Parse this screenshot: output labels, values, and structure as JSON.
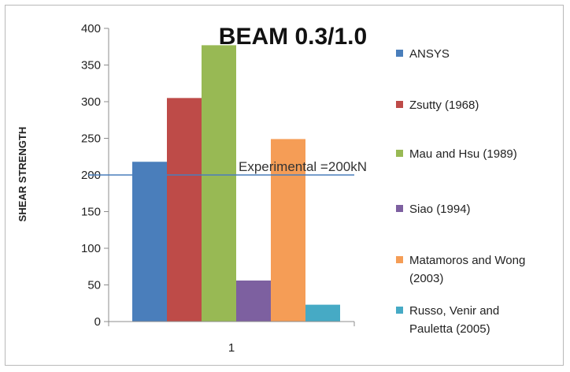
{
  "chart_data": {
    "type": "bar",
    "title": "BEAM 0.3/1.0",
    "xlabel": "",
    "ylabel": "SHEAR STRENGTH",
    "categories": [
      "1"
    ],
    "ylim": [
      0,
      400
    ],
    "yticks": [
      0,
      50,
      100,
      150,
      200,
      250,
      300,
      350,
      400
    ],
    "grid": false,
    "legend_position": "right",
    "series": [
      {
        "name": "ANSYS",
        "values": [
          218
        ],
        "color": "#4a7ebb"
      },
      {
        "name": "Zsutty (1968)",
        "values": [
          305
        ],
        "color": "#be4b48"
      },
      {
        "name": "Mau and Hsu (1989)",
        "values": [
          377
        ],
        "color": "#98b954"
      },
      {
        "name": "Siao (1994)",
        "values": [
          56
        ],
        "color": "#7d60a0"
      },
      {
        "name": "Matamoros and Wong (2003)",
        "values": [
          249
        ],
        "color": "#f59d56"
      },
      {
        "name": "Russo, Venir and Pauletta (2005)",
        "values": [
          23
        ],
        "color": "#46aac5"
      }
    ],
    "legend_lines": [
      [
        "ANSYS"
      ],
      [
        "Zsutty (1968)"
      ],
      [
        "Mau and Hsu (1989)"
      ],
      [
        "Siao (1994)"
      ],
      [
        "Matamoros and Wong",
        "(2003)"
      ],
      [
        "Russo, Venir and",
        "Pauletta (2005)"
      ]
    ],
    "reference_line": {
      "value": 200,
      "label": "Experimental =200kN",
      "color": "#4a7ebb"
    }
  }
}
